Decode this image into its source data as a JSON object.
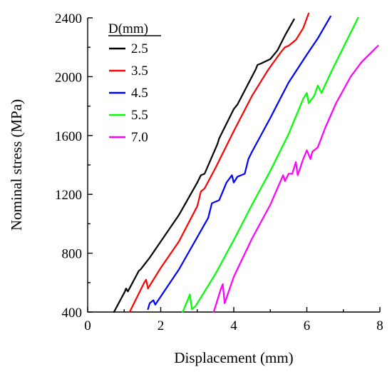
{
  "chart_data": {
    "type": "line",
    "xlabel": "Displacement (mm)",
    "ylabel": "Nominal stress (MPa)",
    "xlim": [
      0,
      8
    ],
    "ylim": [
      400,
      2400
    ],
    "x_ticks": [
      0,
      2,
      4,
      6,
      8
    ],
    "y_ticks": [
      400,
      800,
      1200,
      1600,
      2000,
      2400
    ],
    "grid": false,
    "legend_title": "D(mm)",
    "legend_position": "top-left",
    "series": [
      {
        "name": "2.5",
        "color": "#000000",
        "x": [
          0.72,
          1.02,
          1.05,
          1.1,
          1.4,
          1.45,
          1.7,
          2.5,
          3.0,
          3.1,
          3.2,
          3.55,
          3.6,
          4.0,
          4.1,
          4.6,
          4.65,
          4.75,
          5.0,
          5.2,
          5.4,
          5.65
        ],
        "y": [
          400,
          540,
          560,
          540,
          680,
          690,
          770,
          1060,
          1280,
          1330,
          1340,
          1540,
          1580,
          1780,
          1810,
          2050,
          2080,
          2090,
          2120,
          2180,
          2280,
          2390
        ]
      },
      {
        "name": "3.5",
        "color": "#ff0000",
        "x": [
          1.15,
          1.55,
          1.6,
          1.65,
          2.0,
          2.5,
          3.0,
          3.1,
          3.2,
          3.5,
          4.0,
          4.5,
          4.9,
          4.95,
          5.3,
          5.4,
          5.5,
          5.7,
          5.9,
          6.05
        ],
        "y": [
          400,
          600,
          620,
          560,
          700,
          880,
          1120,
          1220,
          1240,
          1380,
          1630,
          1870,
          2030,
          2050,
          2170,
          2200,
          2210,
          2250,
          2330,
          2430
        ]
      },
      {
        "name": "4.5",
        "color": "#0000ff",
        "x": [
          1.65,
          1.7,
          1.8,
          1.85,
          2.5,
          3.3,
          3.4,
          3.6,
          3.8,
          3.95,
          4.0,
          4.1,
          4.3,
          4.4,
          4.5,
          5.0,
          5.5,
          6.0,
          6.3,
          6.65
        ],
        "y": [
          420,
          460,
          480,
          450,
          690,
          1040,
          1140,
          1160,
          1280,
          1330,
          1280,
          1320,
          1340,
          1440,
          1490,
          1720,
          1960,
          2150,
          2260,
          2410
        ]
      },
      {
        "name": "5.5",
        "color": "#00ff00",
        "x": [
          2.6,
          2.8,
          2.85,
          2.95,
          3.5,
          4.0,
          4.5,
          5.0,
          5.5,
          5.9,
          6.0,
          6.05,
          6.2,
          6.3,
          6.4,
          6.7,
          7.0,
          7.4
        ],
        "y": [
          400,
          520,
          420,
          440,
          660,
          890,
          1130,
          1360,
          1610,
          1850,
          1890,
          1820,
          1870,
          1940,
          1890,
          2050,
          2200,
          2400
        ]
      },
      {
        "name": "7.0",
        "color": "#ff00ff",
        "x": [
          3.45,
          3.65,
          3.7,
          3.75,
          4.0,
          4.5,
          5.0,
          5.35,
          5.4,
          5.5,
          5.6,
          5.7,
          5.75,
          5.9,
          6.0,
          6.1,
          6.15,
          6.3,
          6.5,
          6.8,
          7.2,
          7.5,
          7.95
        ],
        "y": [
          400,
          560,
          590,
          460,
          640,
          900,
          1130,
          1330,
          1290,
          1340,
          1340,
          1420,
          1330,
          1440,
          1500,
          1440,
          1490,
          1520,
          1650,
          1820,
          2000,
          2100,
          2210
        ]
      }
    ]
  }
}
